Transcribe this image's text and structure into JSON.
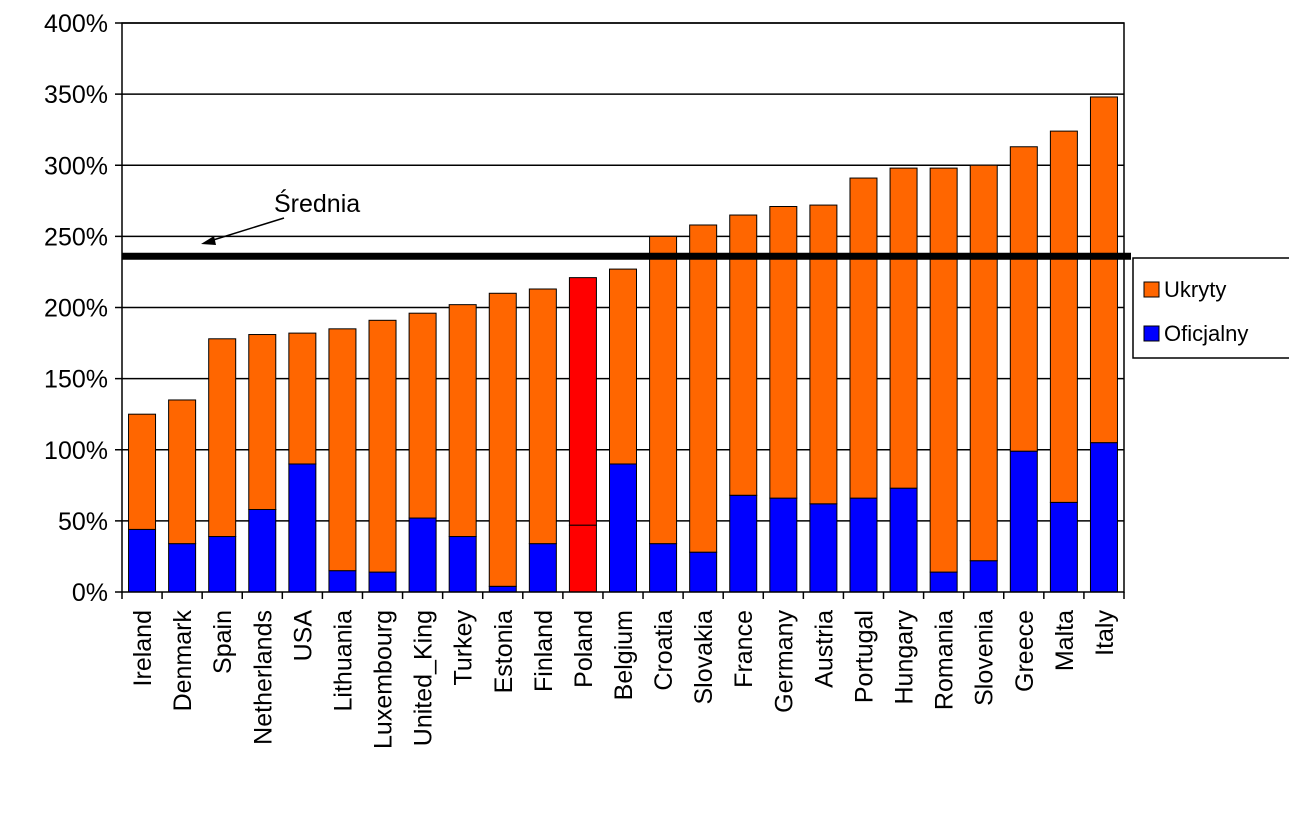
{
  "chart_data": {
    "type": "bar",
    "stacked": true,
    "title": "",
    "xlabel": "",
    "ylabel": "",
    "ylim": [
      0,
      400
    ],
    "y_tick_step": 50,
    "y_tick_format": "percent",
    "grid": "horizontal",
    "legend_position": "right",
    "categories": [
      "Ireland",
      "Denmark",
      "Spain",
      "Netherlands",
      "USA",
      "Lithuania",
      "Luxembourg",
      "United_King",
      "Turkey",
      "Estonia",
      "Finland",
      "Poland",
      "Belgium",
      "Croatia",
      "Slovakia",
      "France",
      "Germany",
      "Austria",
      "Portugal",
      "Hungary",
      "Romania",
      "Slovenia",
      "Greece",
      "Malta",
      "Italy"
    ],
    "series": [
      {
        "name": "Oficjalny",
        "color": "#0000ff",
        "values": [
          44,
          34,
          39,
          58,
          90,
          15,
          14,
          52,
          39,
          4,
          34,
          47,
          90,
          34,
          28,
          68,
          66,
          62,
          66,
          73,
          14,
          22,
          99,
          63,
          105
        ]
      },
      {
        "name": "Ukryty",
        "color": "#ff6600",
        "values": [
          81,
          101,
          139,
          123,
          92,
          170,
          177,
          144,
          163,
          206,
          179,
          174,
          137,
          216,
          230,
          197,
          205,
          210,
          225,
          225,
          284,
          278,
          214,
          261,
          243
        ]
      }
    ],
    "highlight": {
      "category": "Poland",
      "color": "#ff0000"
    },
    "reference_line": {
      "value": 236,
      "color": "#000000"
    },
    "annotation": {
      "text": "Średnia"
    }
  }
}
